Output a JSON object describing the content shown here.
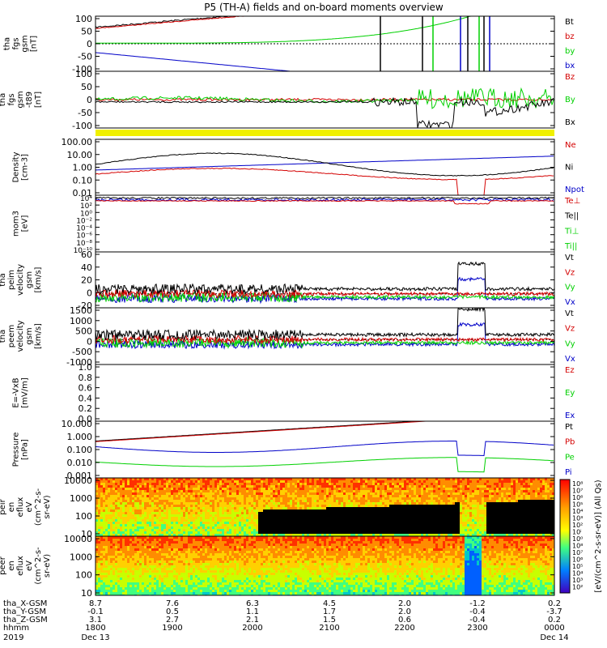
{
  "title": "P5 (TH-A) fields and on-board moments overview",
  "colors": {
    "black": "#000000",
    "red": "#d40000",
    "green": "#00d000",
    "blue": "#0000c8",
    "yellow": "#f0f000",
    "orange": "#ff8c00"
  },
  "chart_data": [
    {
      "type": "line",
      "title": "",
      "ylabel": [
        "tha",
        "fgs",
        "gsm",
        "[nT]"
      ],
      "yticks": [
        "100",
        "50",
        "0",
        "-50",
        "-100"
      ],
      "ylim": [
        -100,
        100
      ],
      "legend": [
        {
          "label": "Bt",
          "color": "black"
        },
        {
          "label": "bz",
          "color": "red"
        },
        {
          "label": "by",
          "color": "green"
        },
        {
          "label": "bx",
          "color": "blue"
        }
      ]
    },
    {
      "type": "line",
      "title": "",
      "ylabel": [
        "tha",
        "fgs",
        "gsm",
        "-t89",
        "[nT]"
      ],
      "yticks": [
        "100",
        "50",
        "0",
        "-50",
        "-100"
      ],
      "ylim": [
        -100,
        100
      ],
      "legend": [
        {
          "label": "Bz",
          "color": "red"
        },
        {
          "label": "By",
          "color": "green"
        },
        {
          "label": "Bx",
          "color": "black"
        }
      ]
    },
    {
      "type": "line",
      "title": "",
      "ylabel": [
        "Density",
        "[cm-3]"
      ],
      "log": true,
      "yticks": [
        "100.00",
        "10.00",
        "1.00",
        "0.10",
        "0.01"
      ],
      "legend": [
        {
          "label": "Ne",
          "color": "red"
        },
        {
          "label": "Ni",
          "color": "black"
        },
        {
          "label": "Npot",
          "color": "blue"
        }
      ]
    },
    {
      "type": "line",
      "title": "",
      "ylabel": [
        "mom3",
        "[eV]"
      ],
      "log": true,
      "yticks": [
        "10⁴",
        "10²",
        "10⁰",
        "10⁻²",
        "10⁻⁴",
        "10⁻⁶",
        "10⁻⁸",
        "10⁻¹⁰"
      ],
      "legend": [
        {
          "label": "Te⊥",
          "color": "red"
        },
        {
          "label": "Te||",
          "color": "black"
        },
        {
          "label": "Ti⊥",
          "color": "green"
        },
        {
          "label": "Ti||",
          "color": "green"
        }
      ]
    },
    {
      "type": "line",
      "title": "",
      "ylabel": [
        "tha",
        "peim",
        "velocity",
        "gsm",
        "[km/s]"
      ],
      "yticks": [
        "60",
        "40",
        "20",
        "0",
        "-20"
      ],
      "ylim": [
        -20,
        60
      ],
      "legend": [
        {
          "label": "Vt",
          "color": "black"
        },
        {
          "label": "Vz",
          "color": "red"
        },
        {
          "label": "Vy",
          "color": "green"
        },
        {
          "label": "Vx",
          "color": "blue"
        }
      ]
    },
    {
      "type": "line",
      "title": "",
      "ylabel": [
        "tha",
        "peem",
        "velocity",
        "gsm",
        "[km/s]"
      ],
      "yticks": [
        "1500",
        "1000",
        "500",
        "0",
        "-500",
        "-1000"
      ],
      "ylim": [
        -1000,
        1500
      ],
      "legend": [
        {
          "label": "Vt",
          "color": "black"
        },
        {
          "label": "Vz",
          "color": "red"
        },
        {
          "label": "Vy",
          "color": "green"
        },
        {
          "label": "Vx",
          "color": "blue"
        }
      ]
    },
    {
      "type": "line",
      "title": "",
      "ylabel": [
        "E=-VxB",
        "[mV/m]"
      ],
      "yticks": [
        "1.0",
        "0.8",
        "0.6",
        "0.4",
        "0.2",
        "0.0"
      ],
      "ylim": [
        0,
        1
      ],
      "legend": [
        {
          "label": "Ez",
          "color": "red"
        },
        {
          "label": "Ey",
          "color": "green"
        },
        {
          "label": "Ex",
          "color": "blue"
        }
      ]
    },
    {
      "type": "line",
      "title": "",
      "ylabel": [
        "Pressure",
        "[nPa]"
      ],
      "log": true,
      "yticks": [
        "10.000",
        "1.000",
        "0.100",
        "0.010",
        "0.001"
      ],
      "legend": [
        {
          "label": "Pt",
          "color": "black"
        },
        {
          "label": "Pb",
          "color": "red"
        },
        {
          "label": "Pe",
          "color": "green"
        },
        {
          "label": "Pi",
          "color": "blue"
        }
      ]
    },
    {
      "type": "heatmap",
      "title": "",
      "ylabel": [
        "tha",
        "peir",
        "en",
        "eflux",
        "eV",
        "(cm^2-s-",
        "sr-eV)"
      ],
      "log": true,
      "yticks": [
        "10000",
        "1000",
        "100",
        "10"
      ]
    },
    {
      "type": "heatmap",
      "title": "",
      "ylabel": [
        "tha",
        "peer",
        "en",
        "eflux",
        "eV",
        "(cm^2-s-",
        "sr-eV)"
      ],
      "log": true,
      "yticks": [
        "10000",
        "1000",
        "100",
        "10"
      ]
    }
  ],
  "colorbar": {
    "label": "[eV/(cm^2-s-sr-eV)] (All Qs)",
    "ticks": [
      "10⁸",
      "10⁷",
      "10⁶",
      "10⁵",
      "10⁴",
      "10³",
      "10²",
      "10ⁱ",
      "10⁰",
      "10⁸",
      "10⁷",
      "10⁶",
      "10⁵",
      "10⁴",
      "10³",
      "10²"
    ]
  },
  "axis": {
    "rows": [
      {
        "label": "tha_X-GSM",
        "values": [
          "8.7",
          "7.6",
          "6.3",
          "4.5",
          "2.0",
          "-1.2",
          "0.2"
        ]
      },
      {
        "label": "tha_Y-GSM",
        "values": [
          "-0.1",
          "0.5",
          "1.1",
          "1.7",
          "2.0",
          "-0.4",
          "-3.7"
        ]
      },
      {
        "label": "tha_Z-GSM",
        "values": [
          "3.1",
          "2.7",
          "2.1",
          "1.5",
          "0.6",
          "-0.4",
          "0.2"
        ]
      },
      {
        "label": "hhmm",
        "values": [
          "1800",
          "1900",
          "2000",
          "2100",
          "2200",
          "2300",
          "0000"
        ]
      }
    ],
    "year": "2019",
    "date_left": "Dec 13",
    "date_right": "Dec 14"
  }
}
